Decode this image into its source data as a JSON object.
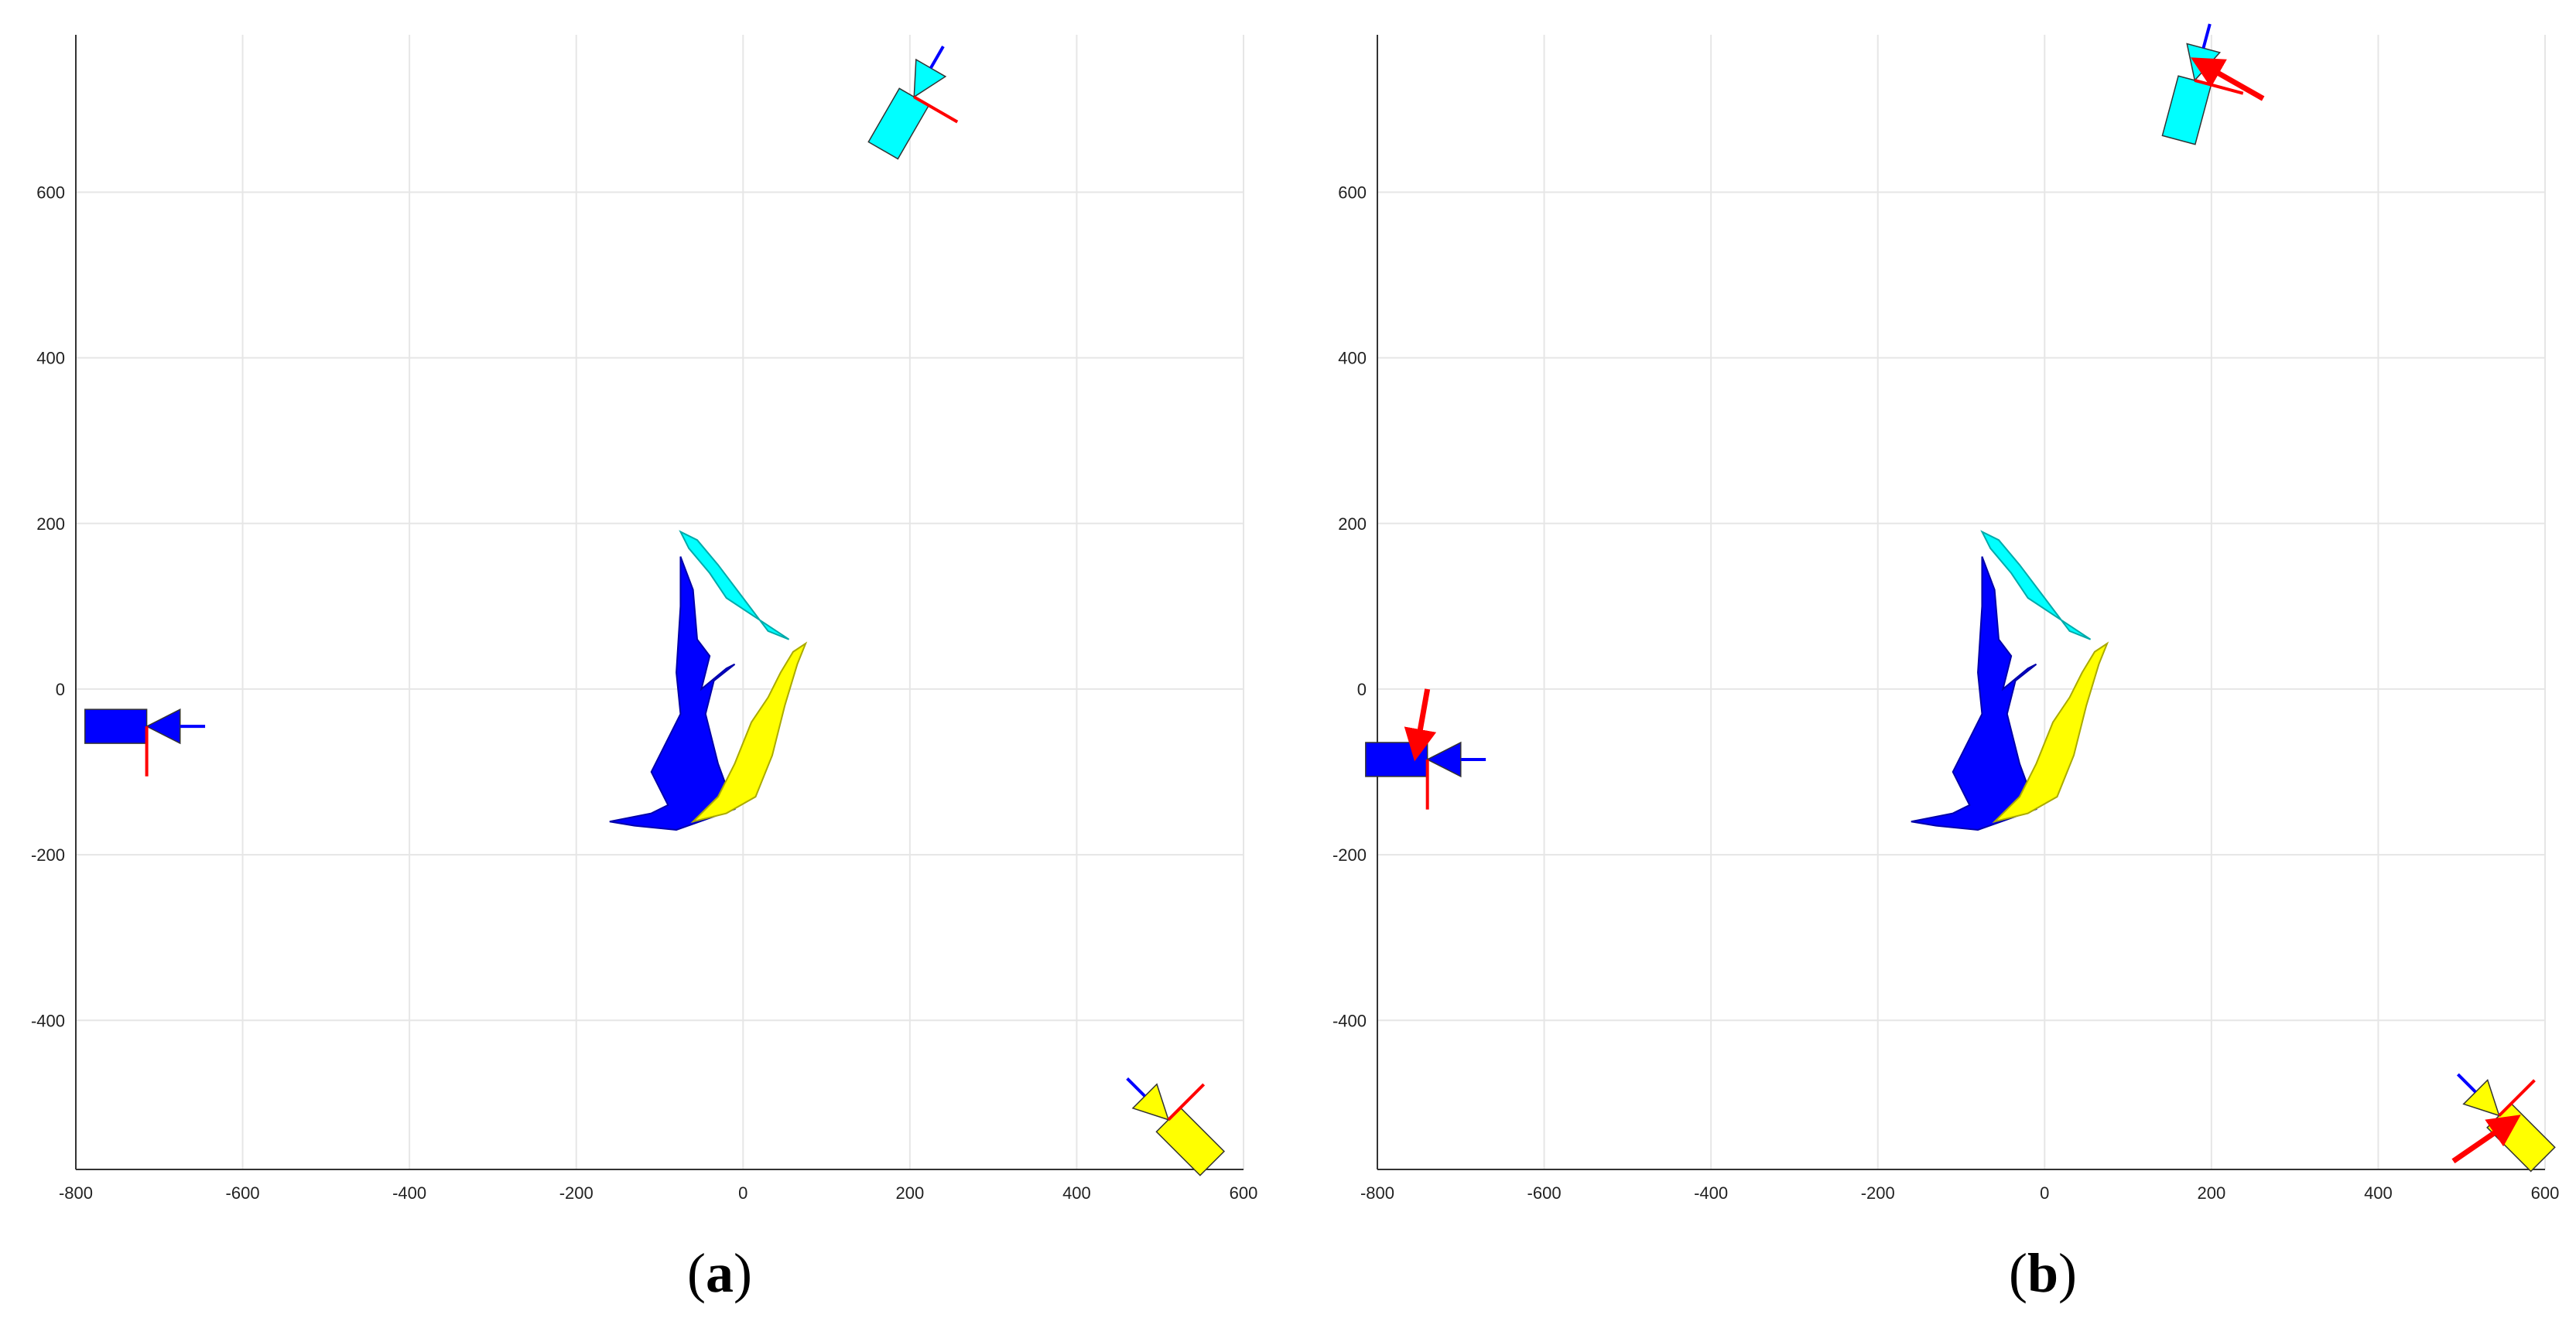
{
  "chart_data": [
    {
      "type": "scatter",
      "panel": "a",
      "caption_open": "(",
      "caption_letter": "a",
      "caption_close": ")",
      "xlim": [
        -800,
        600
      ],
      "ylim": [
        -580,
        790
      ],
      "xticks": [
        -800,
        -600,
        -400,
        -200,
        0,
        200,
        400,
        600
      ],
      "yticks": [
        -400,
        -200,
        0,
        200,
        400,
        600
      ],
      "grid": true,
      "colors": {
        "cyan": "#00ffff",
        "blue": "#0000ff",
        "yellow": "#ffff00",
        "axis_red": "#ff0000"
      },
      "cameras": [
        {
          "name": "cyan-camera",
          "color": "#00ffff",
          "x": 205,
          "y": 715,
          "angle": -60
        },
        {
          "name": "blue-camera",
          "color": "#0000ff",
          "x": -715,
          "y": -45,
          "angle": 0
        },
        {
          "name": "yellow-camera",
          "color": "#ffff00",
          "x": 510,
          "y": -520,
          "angle": -135
        }
      ],
      "annotation_arrows": []
    },
    {
      "type": "scatter",
      "panel": "b",
      "caption_open": "(",
      "caption_letter": "b",
      "caption_close": ")",
      "xlim": [
        -800,
        600
      ],
      "ylim": [
        -580,
        790
      ],
      "xticks": [
        -800,
        -600,
        -400,
        -200,
        0,
        200,
        400,
        600
      ],
      "yticks": [
        -400,
        -200,
        0,
        200,
        400,
        600
      ],
      "grid": true,
      "colors": {
        "cyan": "#00ffff",
        "blue": "#0000ff",
        "yellow": "#ffff00",
        "axis_red": "#ff0000"
      },
      "cameras": [
        {
          "name": "cyan-camera",
          "color": "#00ffff",
          "x": 180,
          "y": 735,
          "angle": -75
        },
        {
          "name": "blue-camera",
          "color": "#0000ff",
          "x": -740,
          "y": -85,
          "angle": 0
        },
        {
          "name": "yellow-camera",
          "color": "#ffff00",
          "x": 545,
          "y": -515,
          "angle": -135
        }
      ],
      "annotation_arrows": [
        {
          "color": "#ff0000",
          "from": [
            262,
            713
          ],
          "to": [
            192,
            753
          ]
        },
        {
          "color": "#ff0000",
          "from": [
            -740,
            0
          ],
          "to": [
            -752,
            -68
          ]
        },
        {
          "color": "#ff0000",
          "from": [
            490,
            -570
          ],
          "to": [
            555,
            -525
          ]
        }
      ]
    }
  ]
}
